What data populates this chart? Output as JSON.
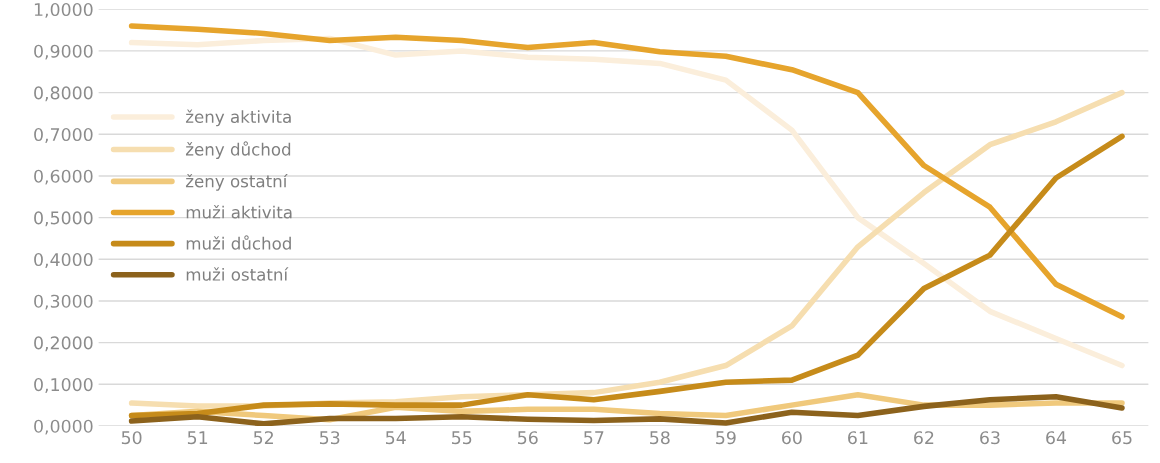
{
  "chart_data": {
    "type": "line",
    "categories": [
      "50",
      "51",
      "52",
      "53",
      "54",
      "55",
      "56",
      "57",
      "58",
      "59",
      "60",
      "61",
      "62",
      "63",
      "64",
      "65"
    ],
    "series": [
      {
        "name": "ženy aktivita",
        "color": "#fbeedb",
        "values": [
          0.92,
          0.915,
          0.925,
          0.93,
          0.89,
          0.9,
          0.885,
          0.88,
          0.87,
          0.83,
          0.71,
          0.5,
          0.39,
          0.275,
          0.21,
          0.145
        ]
      },
      {
        "name": "ženy důchod",
        "color": "#f6deb0",
        "values": [
          0.055,
          0.048,
          0.048,
          0.055,
          0.058,
          0.07,
          0.075,
          0.08,
          0.105,
          0.145,
          0.24,
          0.43,
          0.56,
          0.675,
          0.73,
          0.8
        ]
      },
      {
        "name": "ženy ostatní",
        "color": "#f0c97c",
        "values": [
          0.025,
          0.035,
          0.025,
          0.015,
          0.045,
          0.035,
          0.04,
          0.04,
          0.03,
          0.025,
          0.05,
          0.075,
          0.05,
          0.05,
          0.055,
          0.055
        ]
      },
      {
        "name": "muži aktivita",
        "color": "#e6a42c",
        "values": [
          0.96,
          0.952,
          0.942,
          0.925,
          0.933,
          0.925,
          0.908,
          0.92,
          0.898,
          0.887,
          0.855,
          0.8,
          0.625,
          0.525,
          0.34,
          0.262
        ]
      },
      {
        "name": "muži důchod",
        "color": "#c68b1a",
        "values": [
          0.025,
          0.03,
          0.05,
          0.053,
          0.05,
          0.05,
          0.075,
          0.063,
          0.083,
          0.105,
          0.11,
          0.17,
          0.33,
          0.41,
          0.595,
          0.695
        ]
      },
      {
        "name": "muži ostatní",
        "color": "#8c621c",
        "values": [
          0.012,
          0.022,
          0.005,
          0.018,
          0.018,
          0.022,
          0.016,
          0.013,
          0.017,
          0.007,
          0.033,
          0.025,
          0.047,
          0.063,
          0.07,
          0.043
        ]
      }
    ],
    "ylim": [
      0,
      1
    ],
    "yticks": [
      {
        "value": 0,
        "label": "0,0000"
      },
      {
        "value": 0.1,
        "label": "0,1000"
      },
      {
        "value": 0.2,
        "label": "0,2000"
      },
      {
        "value": 0.3,
        "label": "0,3000"
      },
      {
        "value": 0.4,
        "label": "0,4000"
      },
      {
        "value": 0.5,
        "label": "0,5000"
      },
      {
        "value": 0.6,
        "label": "0,6000"
      },
      {
        "value": 0.7,
        "label": "0,7000"
      },
      {
        "value": 0.8,
        "label": "0,8000"
      },
      {
        "value": 0.9,
        "label": "0,9000"
      },
      {
        "value": 1,
        "label": "1,0000"
      }
    ],
    "grid": "y",
    "legend": "left",
    "marker": "none",
    "line_style": "solid"
  }
}
